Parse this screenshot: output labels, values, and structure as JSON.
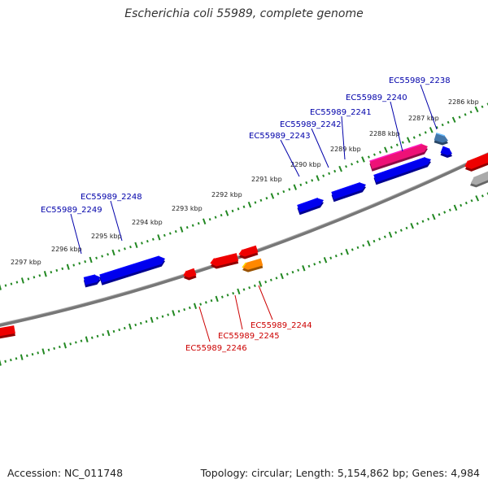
{
  "title": "Escherichia coli 55989, complete genome",
  "footer": {
    "accession": "Accession: NC_011748",
    "topology": "Topology: circular; Length: 5,154,862 bp; Genes: 4,984"
  },
  "colors": {
    "forward_gene": "#0000ee",
    "reverse_gene": "#ee0000",
    "pink_gene": "#ee1177",
    "orange_gene": "#ff8800",
    "steel_gene": "#4477aa",
    "grey_gene": "#aaaaaa",
    "backbone": "#777777",
    "tick": "#228822",
    "forward_label": "#0000aa",
    "reverse_label": "#cc0000"
  },
  "kbp_labels": [
    {
      "text": "2286 kbp",
      "kbp": 2286
    },
    {
      "text": "2287 kbp",
      "kbp": 2287
    },
    {
      "text": "2288 kbp",
      "kbp": 2288
    },
    {
      "text": "2289 kbp",
      "kbp": 2289
    },
    {
      "text": "2290 kbp",
      "kbp": 2290
    },
    {
      "text": "2291 kbp",
      "kbp": 2291
    },
    {
      "text": "2292 kbp",
      "kbp": 2292
    },
    {
      "text": "2293 kbp",
      "kbp": 2293
    },
    {
      "text": "2294 kbp",
      "kbp": 2294
    },
    {
      "text": "2295 kbp",
      "kbp": 2295
    },
    {
      "text": "2296 kbp",
      "kbp": 2296
    },
    {
      "text": "2297 kbp",
      "kbp": 2297
    }
  ],
  "forward_labels": [
    "EC55989_2238",
    "EC55989_2240",
    "EC55989_2241",
    "EC55989_2242",
    "EC55989_2243",
    "EC55989_2248",
    "EC55989_2249"
  ],
  "reverse_labels": [
    "EC55989_2244",
    "EC55989_2245",
    "EC55989_2246"
  ]
}
